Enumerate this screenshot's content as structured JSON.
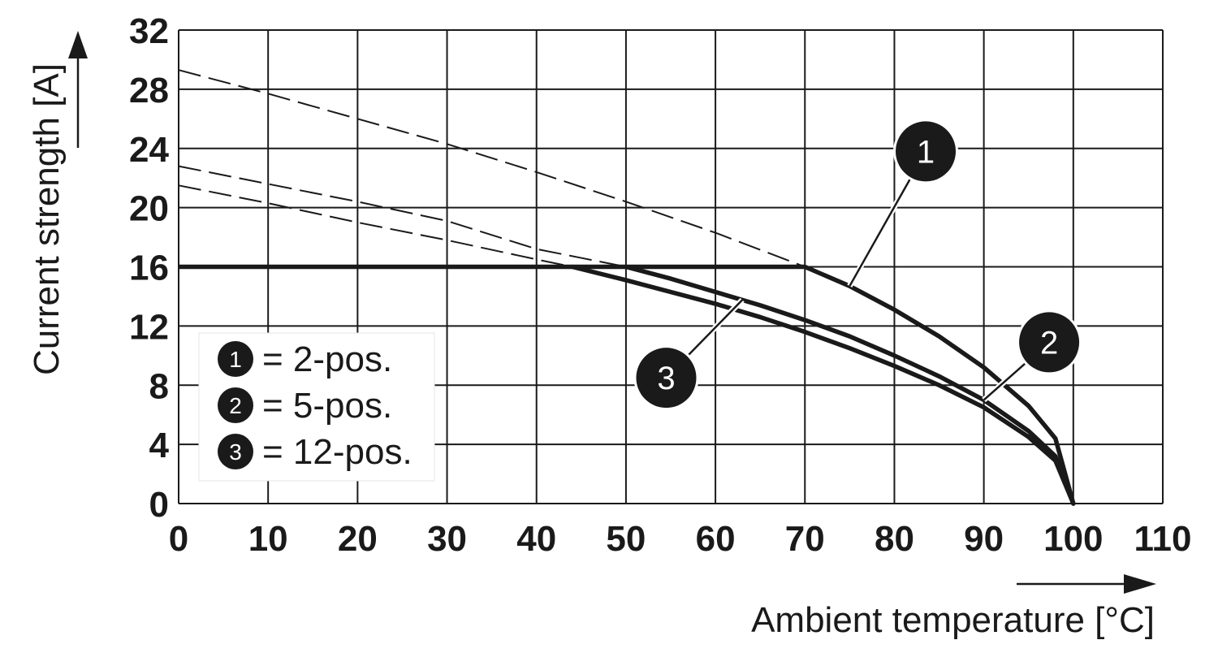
{
  "chart_data": {
    "type": "line",
    "xlabel": "Ambient temperature [°C]",
    "ylabel": "Current strength [A]",
    "xlim": [
      0,
      110
    ],
    "ylim": [
      0,
      32
    ],
    "x_ticks": [
      "0",
      "10",
      "20",
      "30",
      "40",
      "50",
      "60",
      "70",
      "80",
      "90",
      "100",
      "110"
    ],
    "y_ticks": [
      "0",
      "4",
      "8",
      "12",
      "16",
      "20",
      "24",
      "28",
      "32"
    ],
    "grid": true,
    "current_limit": 16,
    "legend": [
      {
        "marker": "1",
        "text": "= 2-pos."
      },
      {
        "marker": "2",
        "text": "= 5-pos."
      },
      {
        "marker": "3",
        "text": "= 12-pos."
      }
    ],
    "series": [
      {
        "marker": "1",
        "x": [
          0,
          10,
          20,
          30,
          40,
          50,
          60,
          70,
          75,
          80,
          85,
          90,
          95,
          98,
          100
        ],
        "y": [
          29.3,
          27.7,
          26.0,
          24.3,
          22.4,
          20.4,
          18.3,
          16.0,
          14.7,
          13.1,
          11.3,
          9.2,
          6.6,
          4.4,
          0
        ]
      },
      {
        "marker": "2",
        "x": [
          0,
          10,
          20,
          30,
          40,
          45,
          50,
          55,
          60,
          65,
          70,
          75,
          80,
          85,
          90,
          95,
          98,
          100
        ],
        "y": [
          22.8,
          21.6,
          20.4,
          19.1,
          17.2,
          16.6,
          16.0,
          15.2,
          14.3,
          13.4,
          12.4,
          11.3,
          10.0,
          8.6,
          7.0,
          4.9,
          3.2,
          0
        ]
      },
      {
        "marker": "3",
        "x": [
          0,
          10,
          20,
          30,
          40,
          44,
          50,
          55,
          60,
          65,
          70,
          75,
          80,
          85,
          90,
          95,
          98,
          100
        ],
        "y": [
          21.5,
          20.3,
          19.0,
          17.8,
          16.5,
          16.0,
          15.1,
          14.3,
          13.5,
          12.6,
          11.6,
          10.5,
          9.3,
          8.0,
          6.5,
          4.5,
          2.9,
          0
        ]
      }
    ],
    "callouts": [
      {
        "marker": "1",
        "at_x": 75,
        "label_x": 83.5,
        "label_y": 23.8
      },
      {
        "marker": "2",
        "at_x": 90,
        "label_x": 97.3,
        "label_y": 10.9
      },
      {
        "marker": "3",
        "at_x": 63,
        "label_x": 54.5,
        "label_y": 8.5,
        "series": "2"
      }
    ]
  }
}
